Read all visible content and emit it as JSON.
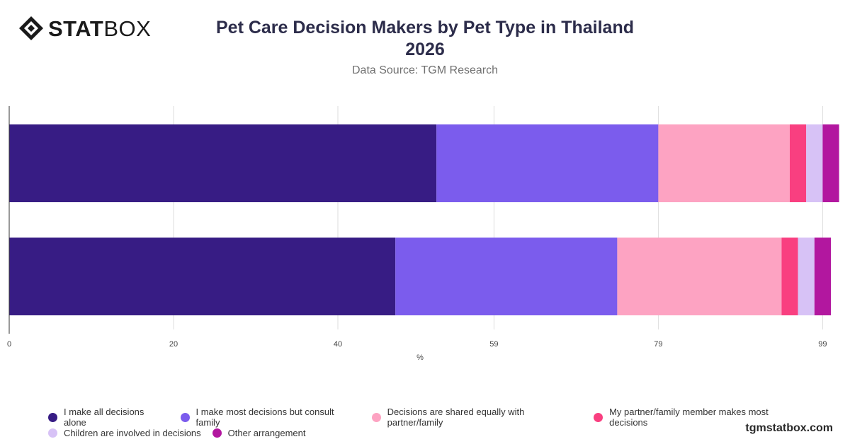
{
  "header": {
    "logo_text_bold": "STAT",
    "logo_text_light": "BOX",
    "title_line1": "Pet Care Decision Makers by Pet Type in Thailand",
    "title_line2": "2026",
    "subtitle": "Data Source: TGM Research"
  },
  "footer": {
    "brand": "tgmstatbox.com"
  },
  "colors": {
    "series": [
      "#371c84",
      "#7b5ced",
      "#fda3c2",
      "#f93f80",
      "#d7c2f6",
      "#b2179f"
    ],
    "grid": "#dddddd",
    "axis": "#333333"
  },
  "chart_data": {
    "type": "bar",
    "orientation": "horizontal",
    "stacked": true,
    "title": "Pet Care Decision Makers by Pet Type in Thailand 2026",
    "xlabel": "%",
    "ylabel": "",
    "xlim": [
      0,
      100
    ],
    "x_ticks": [
      0,
      20,
      40,
      59,
      79,
      99
    ],
    "grid": true,
    "legend_position": "bottom",
    "categories": [
      "",
      ""
    ],
    "series": [
      {
        "name": "I make all decisions alone",
        "values": [
          52,
          47
        ]
      },
      {
        "name": "I make most decisions but consult family",
        "values": [
          27,
          27
        ]
      },
      {
        "name": "Decisions are shared equally with partner/family",
        "values": [
          16,
          20
        ]
      },
      {
        "name": "My partner/family member makes most decisions",
        "values": [
          2,
          2
        ]
      },
      {
        "name": "Children are involved in decisions",
        "values": [
          2,
          2
        ]
      },
      {
        "name": "Other arrangement",
        "values": [
          2,
          2
        ]
      }
    ]
  }
}
